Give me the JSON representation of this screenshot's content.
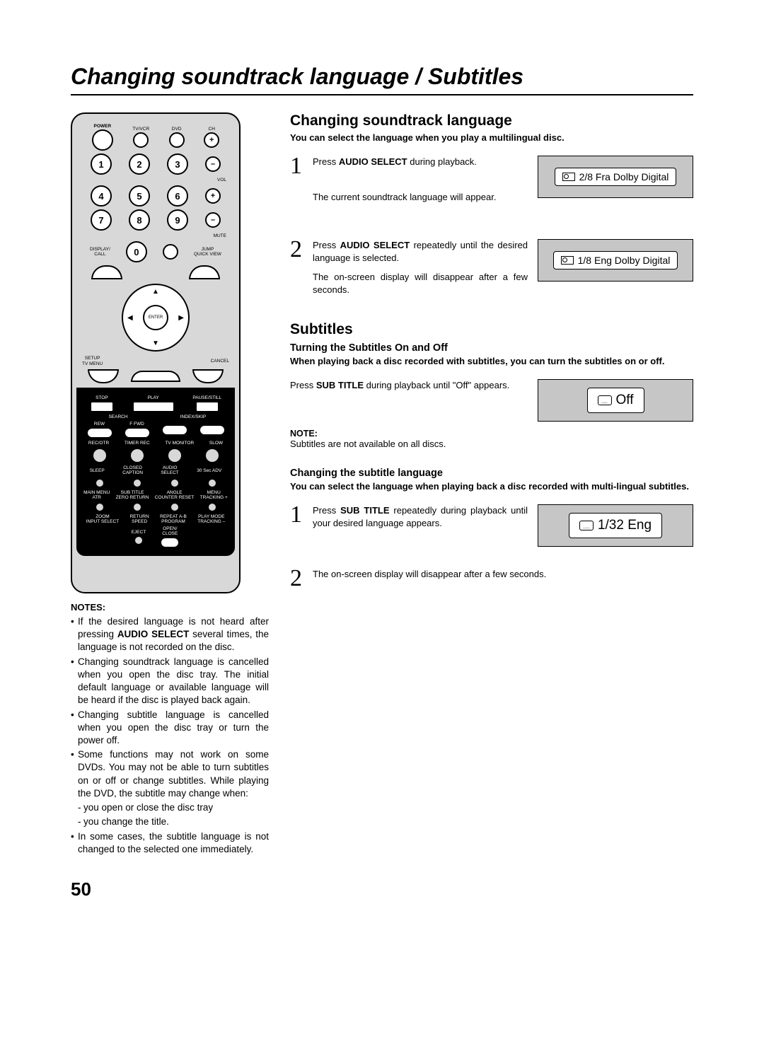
{
  "pageTitle": "Changing soundtrack language / Subtitles",
  "pageNumber": "50",
  "remote": {
    "topLabels": [
      "POWER",
      "TV/VCR",
      "DVD",
      "CH"
    ],
    "volPlus": "+",
    "volMinus": "–",
    "vol": "VOL",
    "mute": "MUTE",
    "displayCall": "DISPLAY/\nCALL",
    "zero": "0",
    "jump": "JUMP\nQUICK VIEW",
    "enter": "ENTER",
    "setup": "SETUP\nTV MENU",
    "cancel": "CANCEL",
    "stop": "STOP",
    "play": "PLAY",
    "pause": "PAUSE/STILL",
    "search": "SEARCH",
    "rew": "REW",
    "ffwd": "F FWD",
    "indexskip": "INDEX/SKIP",
    "rowA": [
      "REC/OTR",
      "TIMER REC",
      "TV MONITOR",
      "SLOW"
    ],
    "rowB": [
      "SLEEP",
      "CLOSED\nCAPTION",
      "AUDIO\nSELECT",
      "30 Sec ADV"
    ],
    "rowC": [
      "MAIN MENU\nATR",
      "SUB TITLE\nZERO RETURN",
      "ANGLE\nCOUNTER RESET",
      "MENU\nTRACKING +"
    ],
    "rowD": [
      "ZOOM\nINPUT SELECT",
      "RETURN\nSPEED",
      "REPEAT A-B\nPROGRAM",
      "PLAY MODE\nTRACKING –"
    ],
    "eject": "EJECT",
    "openclose": "OPEN/\nCLOSE"
  },
  "leftNotes": {
    "title": "NOTES:",
    "items": [
      "If the desired language is not heard after pressing <b>AUDIO SELECT</b> several times, the language is not recorded on the disc.",
      "Changing soundtrack language is cancelled when you open the disc tray. The initial default language or available language will be heard if the disc is played back again.",
      "Changing subtitle language is cancelled when you open the disc tray or turn the power off.",
      "Some functions may not work on some DVDs. You may not be able to turn subtitles on or off or change subtitles. While playing the DVD, the subtitle may change when:",
      "- you open or close the disc tray",
      "- you change the title.",
      "In some cases, the subtitle language is not changed to the selected one immediately."
    ]
  },
  "soundtrack": {
    "title": "Changing soundtrack language",
    "intro": "You can select the language when you play a multilingual disc.",
    "step1a": "Press <b>AUDIO SELECT</b> during playback.",
    "step1b": "The current soundtrack language will appear.",
    "osd1": "2/8 Fra Dolby Digital",
    "step2a": "Press <b>AUDIO SELECT</b> repeatedly until the desired language is selected.",
    "step2b": "The on-screen display will disappear after a few seconds.",
    "osd2": "1/8 Eng Dolby Digital"
  },
  "subtitles": {
    "title": "Subtitles",
    "sub1Title": "Turning the Subtitles On and Off",
    "sub1Intro": "When playing back a disc recorded with subtitles, you can turn the subtitles on or off.",
    "sub1Step": "Press <b>SUB TITLE</b> during playback until \"Off\" appears.",
    "osdOff": "Off",
    "noteLabel": "NOTE:",
    "noteText": "Subtitles are not available on all discs.",
    "sub2Title": "Changing the subtitle language",
    "sub2Intro": "You can select the language when playing back a disc recorded with multi-lingual subtitles.",
    "sub2Step1": "Press <b>SUB TITLE</b> repeatedly during playback until your desired language appears.",
    "osdLang": "1/32 Eng",
    "sub2Step2": "The on-screen display will disappear after a few seconds."
  }
}
